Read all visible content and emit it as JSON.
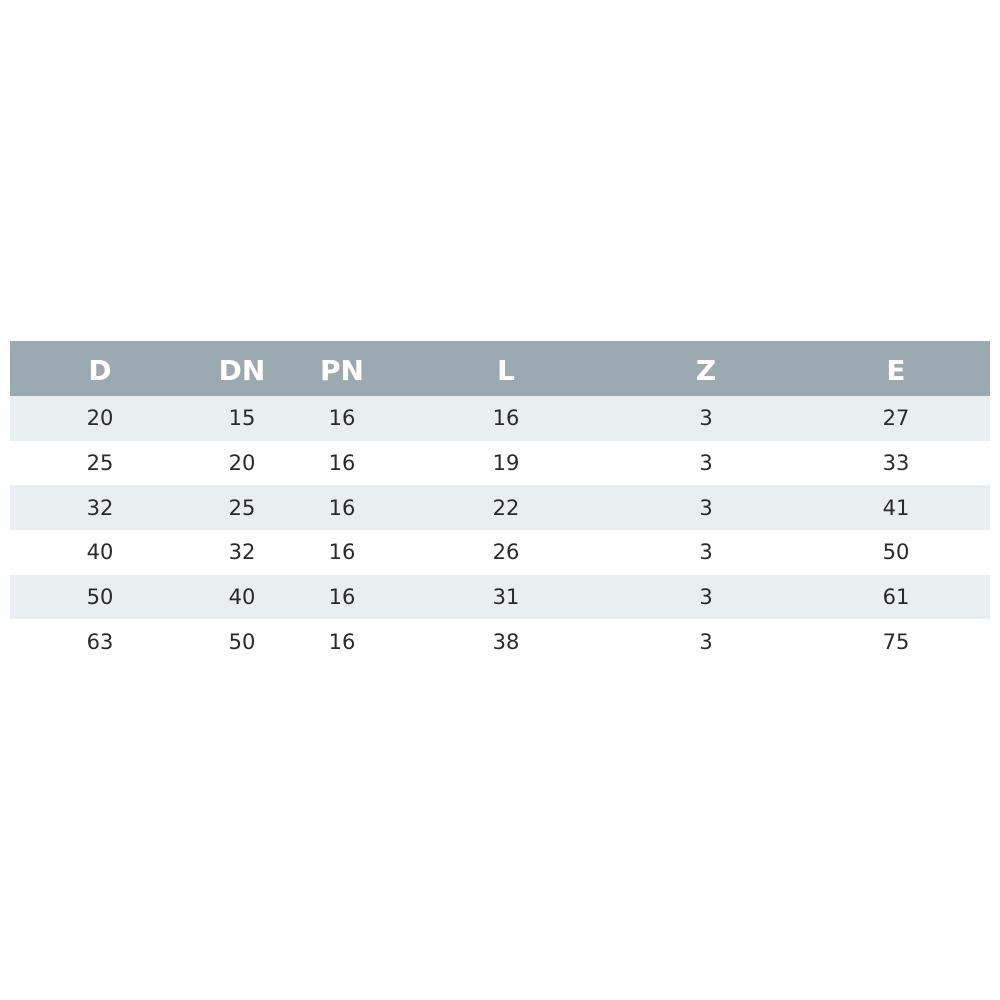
{
  "table": {
    "headers": [
      "D",
      "DN",
      "PN",
      "L",
      "Z",
      "E"
    ],
    "rows": [
      [
        "20",
        "15",
        "16",
        "16",
        "3",
        "27"
      ],
      [
        "25",
        "20",
        "16",
        "19",
        "3",
        "33"
      ],
      [
        "32",
        "25",
        "16",
        "22",
        "3",
        "41"
      ],
      [
        "40",
        "32",
        "16",
        "26",
        "3",
        "50"
      ],
      [
        "50",
        "40",
        "16",
        "31",
        "3",
        "61"
      ],
      [
        "63",
        "50",
        "16",
        "38",
        "3",
        "75"
      ]
    ]
  },
  "colors": {
    "header_bg": "#9ba9b1",
    "stripe_bg": "#e9eef1"
  }
}
